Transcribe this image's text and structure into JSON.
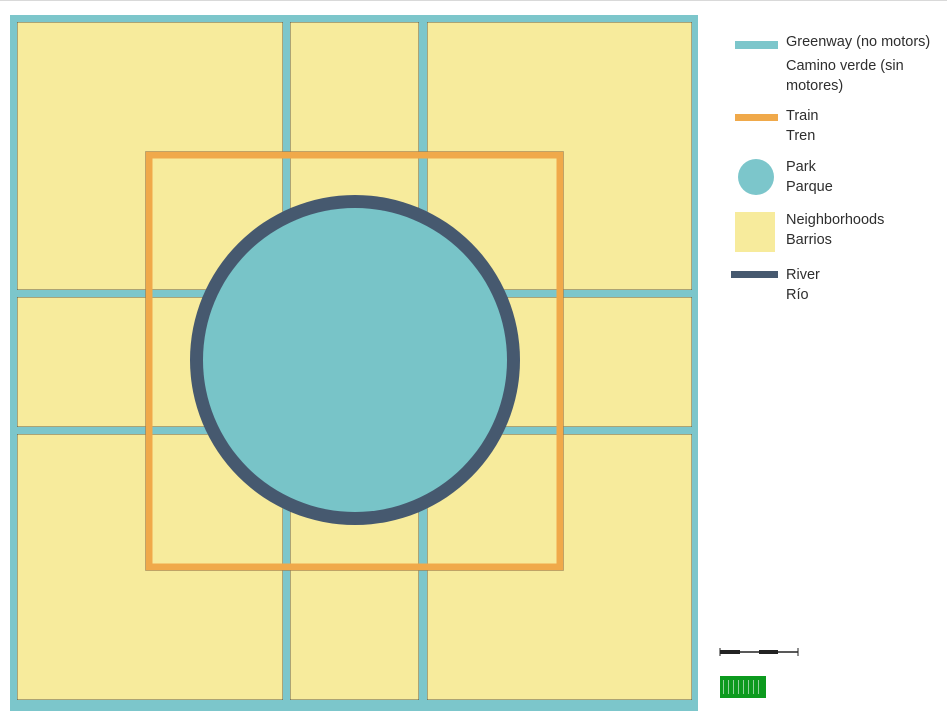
{
  "map": {
    "colors": {
      "greenway": "#7cc6cb",
      "neighborhood": "#f7eb9c",
      "train": "#f0a94a",
      "park": "#78c4c8",
      "river": "#46596f"
    }
  },
  "legend": {
    "greenway": {
      "line1": "Greenway (no motors)",
      "line2": "Camino verde (sin",
      "line3": "motores)",
      "icon": "greenway-line-icon"
    },
    "train": {
      "line1": "Train",
      "line2": "Tren",
      "icon": "train-line-icon"
    },
    "park": {
      "line1": "Park",
      "line2": "Parque",
      "icon": "park-circle-icon"
    },
    "neighborhoods": {
      "line1": "Neighborhoods",
      "line2": "Barrios",
      "icon": "neighborhood-square-icon"
    },
    "river": {
      "line1": "River",
      "line2": "Río",
      "icon": "river-line-icon"
    }
  },
  "scale_bar": {
    "icon": "scale-bar-icon"
  },
  "badge": {
    "icon": "green-badge-icon"
  }
}
